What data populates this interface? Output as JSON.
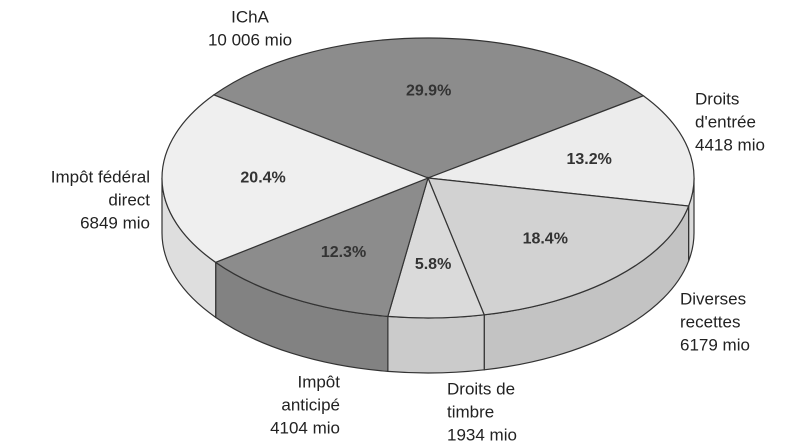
{
  "chart_data": {
    "type": "pie",
    "categories": [
      [
        "IChA"
      ],
      [
        "Droits",
        "d'entrée"
      ],
      [
        "Diverses",
        "recettes"
      ],
      [
        "Droits de",
        "timbre"
      ],
      [
        "Impôt",
        "anticipé"
      ],
      [
        "Impôt fédéral",
        "direct"
      ]
    ],
    "values": [
      29.9,
      13.2,
      18.4,
      5.8,
      12.3,
      20.4
    ],
    "value_labels": [
      "29.9%",
      "13.2%",
      "18.4%",
      "5.8%",
      "12.3%",
      "20.4%"
    ],
    "amounts": [
      10006,
      4418,
      6179,
      1934,
      4104,
      6849
    ],
    "amount_labels": [
      "10 006 mio",
      "4418 mio",
      "6179 mio",
      "1934 mio",
      "4104 mio",
      "6849 mio"
    ],
    "colors": [
      "#8c8c8c",
      "#ececec",
      "#d2d2d2",
      "#dadada",
      "#8c8c8c",
      "#efefef"
    ]
  }
}
